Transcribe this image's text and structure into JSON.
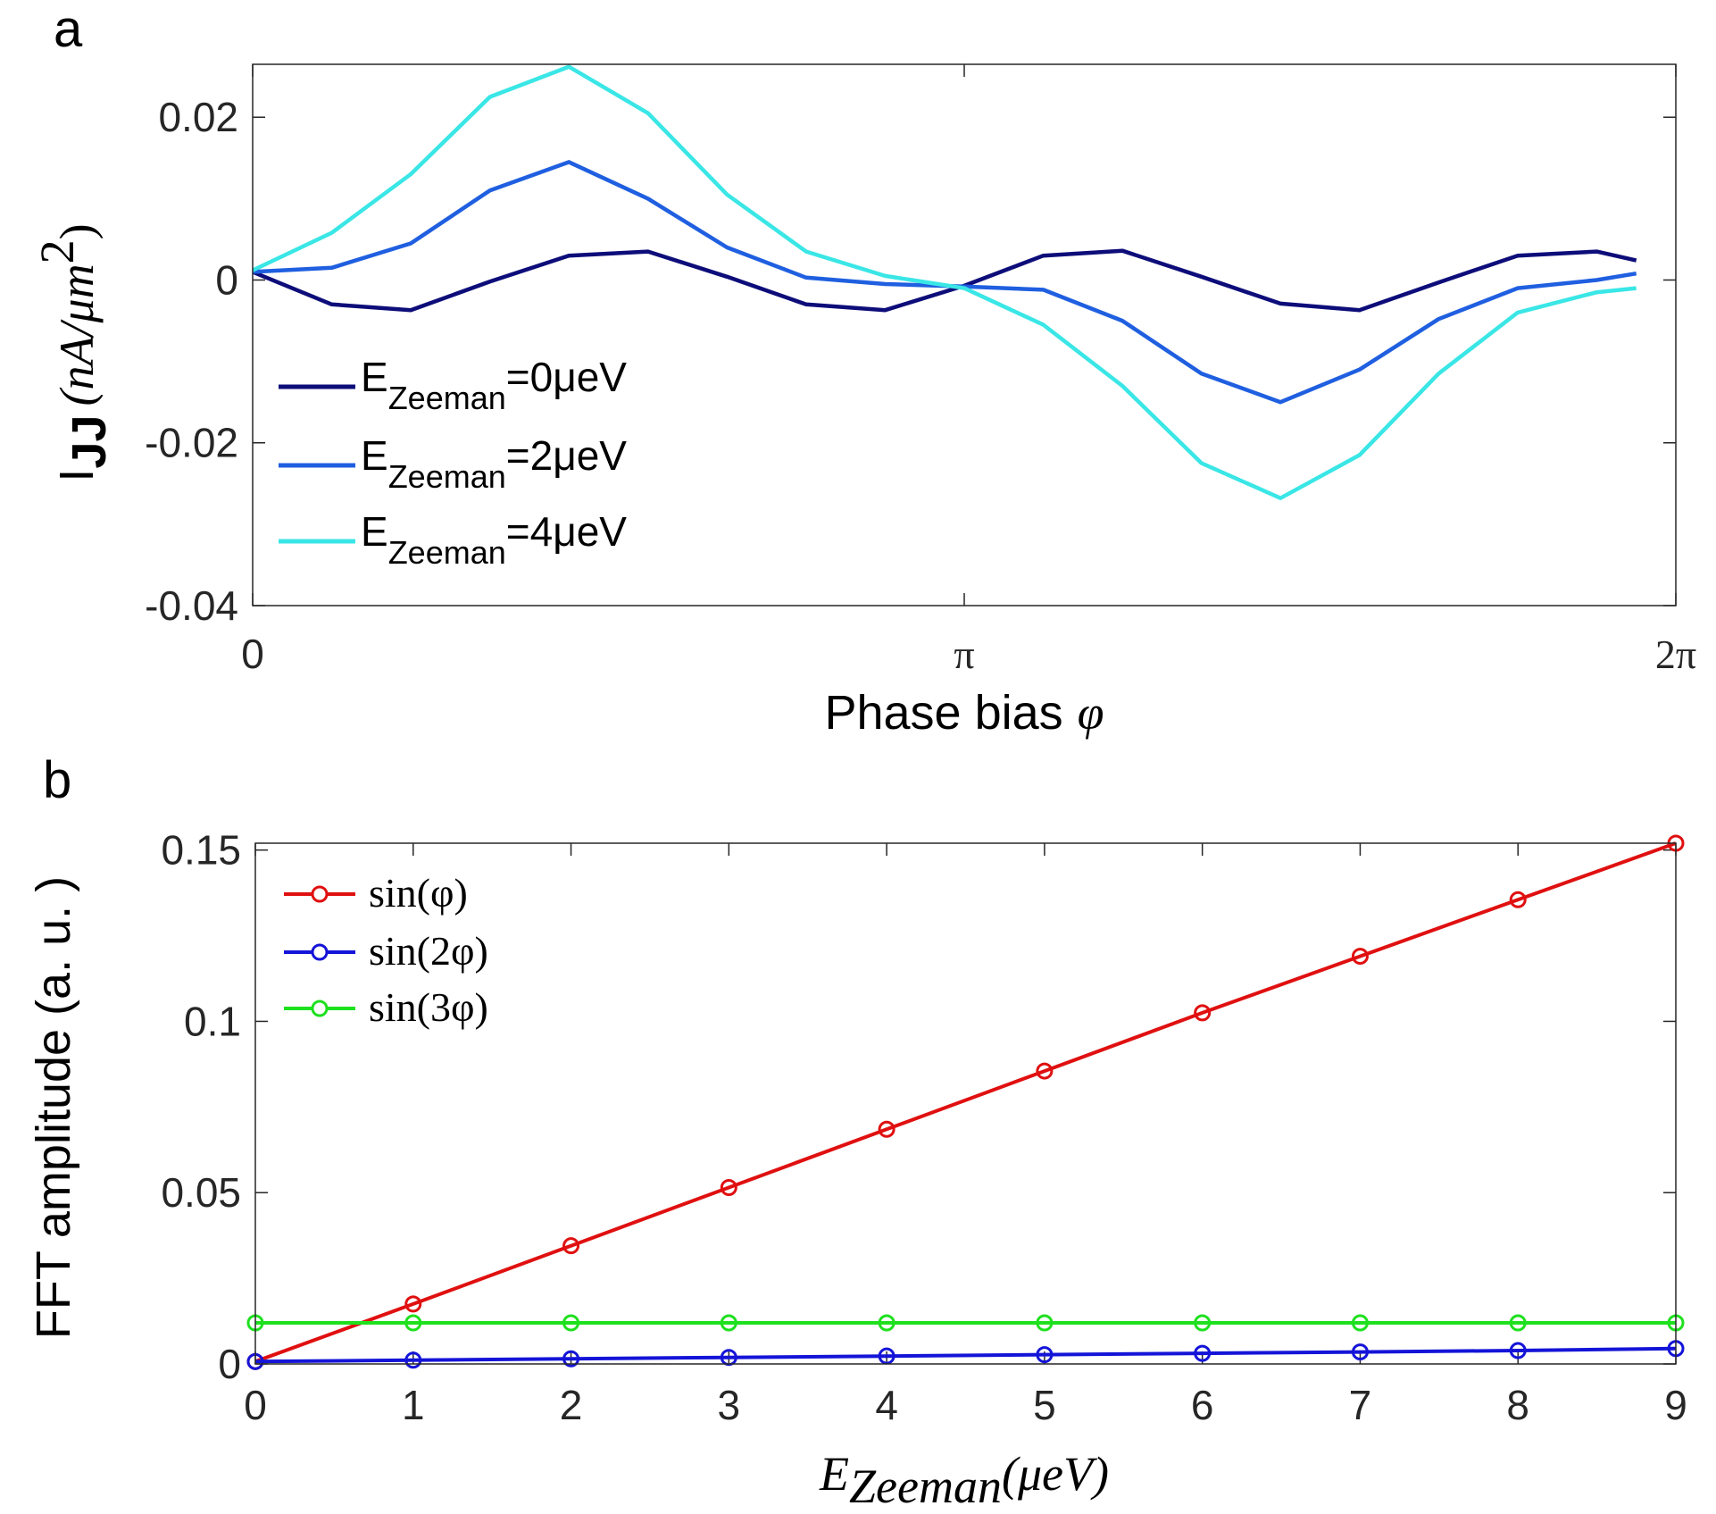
{
  "figure": {
    "panel_a_letter": "a",
    "panel_b_letter": "b"
  },
  "chart_data": [
    {
      "panel": "a",
      "type": "line",
      "xlabel": "Phase bias",
      "xlabel_symbol": "φ",
      "ylabel_main": "I",
      "ylabel_sub": "JJ",
      "ylabel_units": "(nA/μm",
      "ylabel_sup": "2",
      "ylabel_close": ")",
      "xlim": [
        0,
        6.2832
      ],
      "ylim": [
        -0.04,
        0.0265
      ],
      "xticks": [
        {
          "value": 0,
          "label": "0"
        },
        {
          "value": 3.1416,
          "label": "π"
        },
        {
          "value": 6.2832,
          "label": "2π"
        }
      ],
      "yticks": [
        {
          "value": 0.02,
          "label": "0.02"
        },
        {
          "value": 0,
          "label": "0"
        },
        {
          "value": -0.02,
          "label": "-0.02"
        },
        {
          "value": -0.04,
          "label": "-0.04"
        }
      ],
      "legend_position": "lower-left",
      "series": [
        {
          "name": "E_Zeeman=0μeV",
          "legend_main": "E",
          "legend_sub": "Zeeman",
          "legend_tail": "=0μeV",
          "color": "#0d0d7a",
          "x": [
            0,
            0.3491,
            0.6981,
            1.0472,
            1.3963,
            1.7453,
            2.0944,
            2.4435,
            2.7925,
            3.1416,
            3.4907,
            3.8397,
            4.1888,
            4.5379,
            4.8869,
            5.236,
            5.5851,
            5.9341,
            6.1087
          ],
          "y": [
            0.001,
            -0.003,
            -0.0037,
            -0.0002,
            0.003,
            0.0035,
            0.0004,
            -0.003,
            -0.0037,
            -0.0007,
            0.003,
            0.0036,
            0.0004,
            -0.0029,
            -0.0037,
            -0.0003,
            0.003,
            0.0035,
            0.0024
          ]
        },
        {
          "name": "E_Zeeman=2μeV",
          "legend_main": "E",
          "legend_sub": "Zeeman",
          "legend_tail": "=2μeV",
          "color": "#1f5fe0",
          "x": [
            0,
            0.3491,
            0.6981,
            1.0472,
            1.3963,
            1.7453,
            2.0944,
            2.4435,
            2.7925,
            3.1416,
            3.4907,
            3.8397,
            4.1888,
            4.5379,
            4.8869,
            5.236,
            5.5851,
            5.9341,
            6.1087
          ],
          "y": [
            0.001,
            0.0015,
            0.0045,
            0.011,
            0.0145,
            0.01,
            0.004,
            0.0003,
            -0.0005,
            -0.0008,
            -0.0012,
            -0.005,
            -0.0115,
            -0.015,
            -0.011,
            -0.0048,
            -0.001,
            0.0,
            0.0008
          ]
        },
        {
          "name": "E_Zeeman=4μeV",
          "legend_main": "E",
          "legend_sub": "Zeeman",
          "legend_tail": "=4μeV",
          "color": "#3ae6e6",
          "x": [
            0,
            0.3491,
            0.6981,
            1.0472,
            1.3963,
            1.7453,
            2.0944,
            2.4435,
            2.7925,
            3.1416,
            3.4907,
            3.8397,
            4.1888,
            4.5379,
            4.8869,
            5.236,
            5.5851,
            5.9341,
            6.1087
          ],
          "y": [
            0.0012,
            0.0058,
            0.013,
            0.0225,
            0.0262,
            0.0205,
            0.0105,
            0.0035,
            0.0005,
            -0.001,
            -0.0055,
            -0.013,
            -0.0225,
            -0.0268,
            -0.0215,
            -0.0115,
            -0.004,
            -0.0015,
            -0.001
          ]
        }
      ]
    },
    {
      "panel": "b",
      "type": "line",
      "xlabel": "E",
      "xlabel_sub": "Zeeman",
      "xlabel_units": "(μeV)",
      "ylabel": "FFT amplitude (a. u. )",
      "xlim": [
        0,
        9
      ],
      "ylim": [
        0,
        0.152
      ],
      "xticks": [
        {
          "value": 0,
          "label": "0"
        },
        {
          "value": 1,
          "label": "1"
        },
        {
          "value": 2,
          "label": "2"
        },
        {
          "value": 3,
          "label": "3"
        },
        {
          "value": 4,
          "label": "4"
        },
        {
          "value": 5,
          "label": "5"
        },
        {
          "value": 6,
          "label": "6"
        },
        {
          "value": 7,
          "label": "7"
        },
        {
          "value": 8,
          "label": "8"
        },
        {
          "value": 9,
          "label": "9"
        }
      ],
      "yticks": [
        {
          "value": 0.15,
          "label": "0.15"
        },
        {
          "value": 0.1,
          "label": "0.1"
        },
        {
          "value": 0.05,
          "label": "0.05"
        },
        {
          "value": 0,
          "label": "0"
        }
      ],
      "legend_position": "top-left",
      "series": [
        {
          "name": "sin(φ)",
          "color": "#e01010",
          "x": [
            0,
            1,
            2,
            3,
            4,
            5,
            6,
            7,
            8,
            9
          ],
          "y": [
            0.0007,
            0.0175,
            0.0345,
            0.0515,
            0.0685,
            0.0855,
            0.1025,
            0.119,
            0.1355,
            0.152
          ]
        },
        {
          "name": "sin(2φ)",
          "color": "#1414d8",
          "x": [
            0,
            1,
            2,
            3,
            4,
            5,
            6,
            7,
            8,
            9
          ],
          "y": [
            0.0007,
            0.0011,
            0.0015,
            0.0019,
            0.0023,
            0.0027,
            0.0031,
            0.0035,
            0.0039,
            0.0045
          ]
        },
        {
          "name": "sin(3φ)",
          "color": "#1ee01e",
          "x": [
            0,
            1,
            2,
            3,
            4,
            5,
            6,
            7,
            8,
            9
          ],
          "y": [
            0.012,
            0.012,
            0.012,
            0.012,
            0.012,
            0.012,
            0.012,
            0.012,
            0.012,
            0.012
          ]
        }
      ]
    }
  ]
}
